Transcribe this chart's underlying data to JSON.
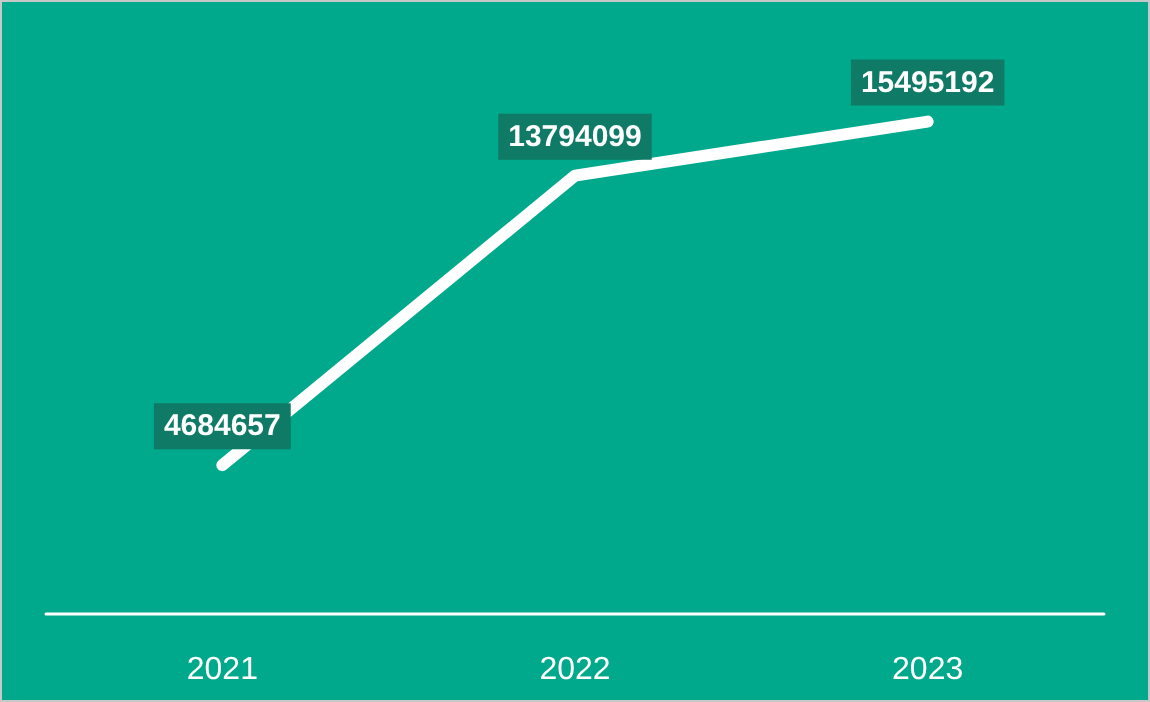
{
  "chart_data": {
    "type": "line",
    "categories": [
      "2021",
      "2022",
      "2023"
    ],
    "series": [
      {
        "color": "#ffffff",
        "values": [
          4684657,
          13794099,
          15495192
        ]
      }
    ],
    "data_labels": true,
    "grid": false,
    "marker": "none",
    "line_style": "solid"
  }
}
